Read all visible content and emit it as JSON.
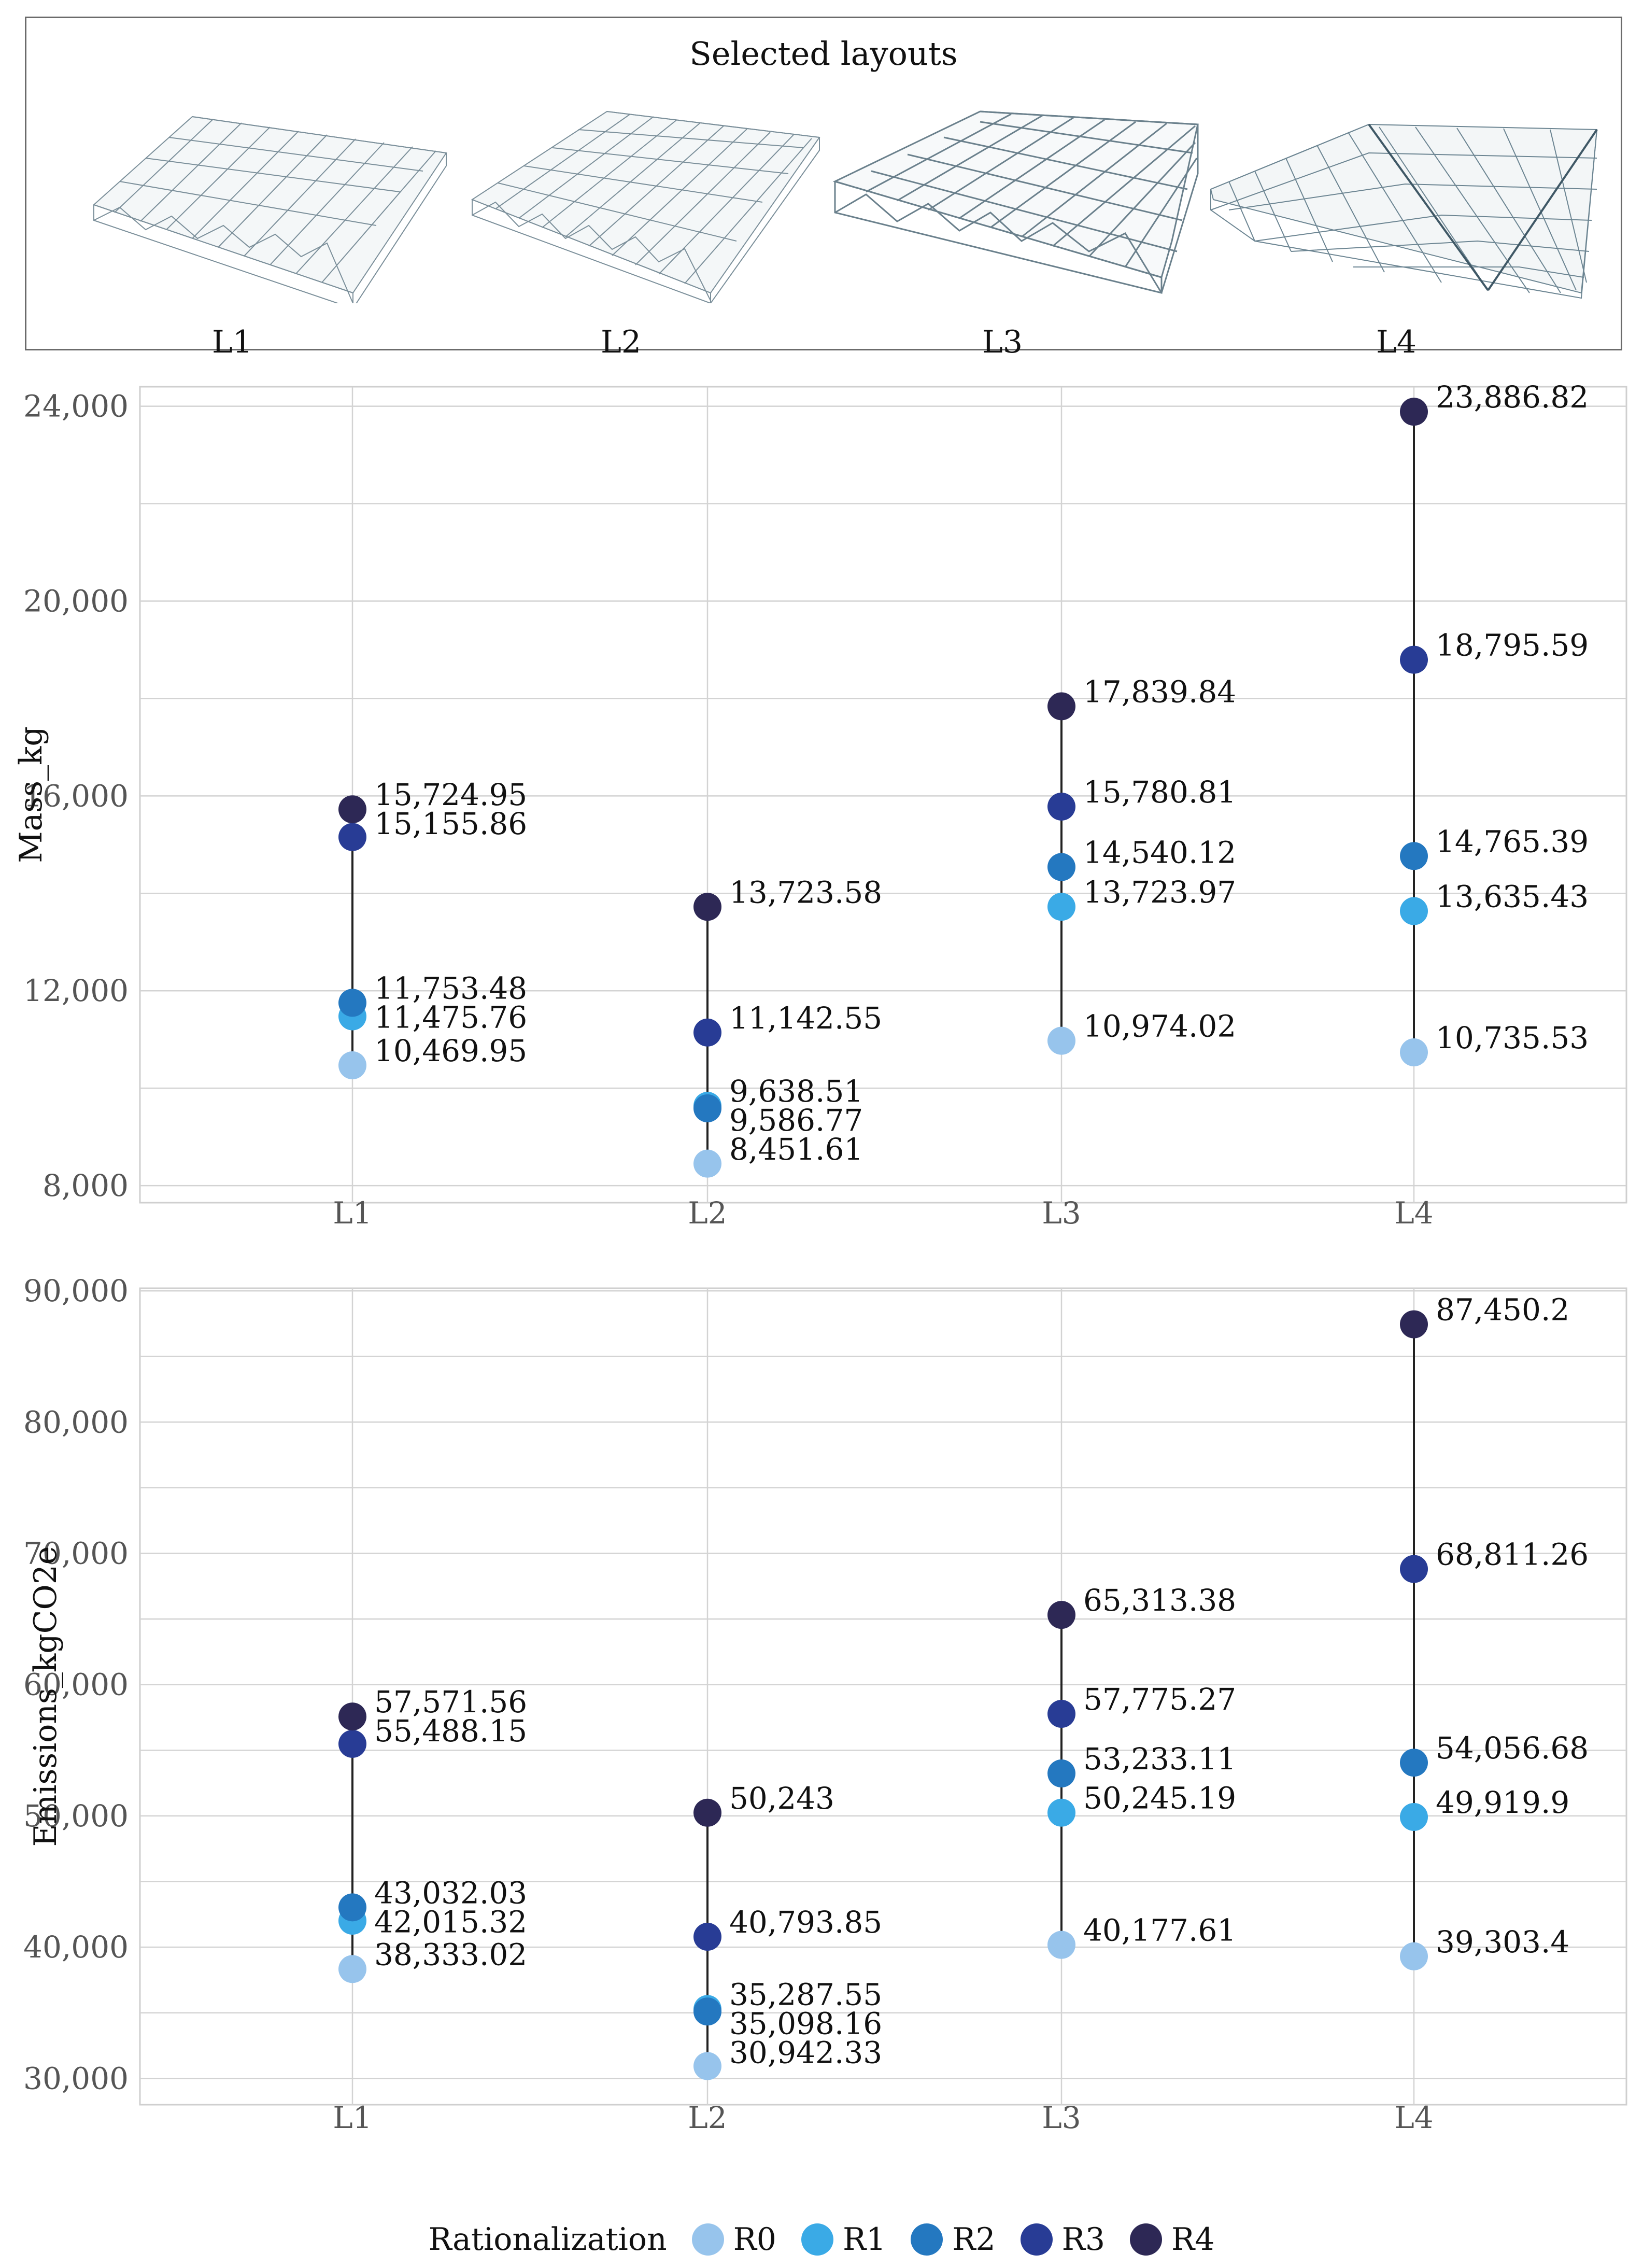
{
  "panel": {
    "title": "Selected layouts",
    "layouts": [
      "L1",
      "L2",
      "L3",
      "L4"
    ]
  },
  "legend": {
    "title": "Rationalization",
    "items": [
      {
        "label": "R0",
        "color": "#97c4ec"
      },
      {
        "label": "R1",
        "color": "#3aaae6"
      },
      {
        "label": "R2",
        "color": "#2478c0"
      },
      {
        "label": "R3",
        "color": "#283c95"
      },
      {
        "label": "R4",
        "color": "#2d2855"
      }
    ]
  },
  "chart_data": [
    {
      "type": "scatter",
      "title": "",
      "xlabel": "",
      "ylabel": "Mass_kg",
      "categories": [
        "L1",
        "L2",
        "L3",
        "L4"
      ],
      "ylim": [
        7650,
        24400
      ],
      "yticks": [
        8000,
        12000,
        16000,
        20000,
        24000
      ],
      "ytick_labels": [
        "8,000",
        "12,000",
        "16,000",
        "20,000",
        "24,000"
      ],
      "grid": true,
      "series": [
        {
          "name": "R0",
          "values": [
            10469.95,
            8451.61,
            10974.02,
            10735.53
          ],
          "labels": [
            "10,469.95",
            "8,451.61",
            "10,974.02",
            "10,735.53"
          ]
        },
        {
          "name": "R1",
          "values": [
            11475.76,
            9638.51,
            13723.97,
            13635.43
          ],
          "labels": [
            "11,475.76",
            "9,638.51",
            "13,723.97",
            "13,635.43"
          ]
        },
        {
          "name": "R2",
          "values": [
            11753.48,
            9586.77,
            14540.12,
            14765.39
          ],
          "labels": [
            "11,753.48",
            "9,586.77",
            "14,540.12",
            "14,765.39"
          ]
        },
        {
          "name": "R3",
          "values": [
            15155.86,
            11142.55,
            15780.81,
            18795.59
          ],
          "labels": [
            "15,155.86",
            "11,142.55",
            "15,780.81",
            "18,795.59"
          ]
        },
        {
          "name": "R4",
          "values": [
            15724.95,
            13723.58,
            17839.84,
            23886.82
          ],
          "labels": [
            "15,724.95",
            "13,723.58",
            "17,839.84",
            "23,886.82"
          ]
        }
      ]
    },
    {
      "type": "scatter",
      "title": "",
      "xlabel": "",
      "ylabel": "Emissions_kgCO2e",
      "categories": [
        "L1",
        "L2",
        "L3",
        "L4"
      ],
      "ylim": [
        28000,
        90200
      ],
      "yticks": [
        30000,
        40000,
        50000,
        60000,
        70000,
        80000,
        90000
      ],
      "ytick_labels": [
        "30,000",
        "40,000",
        "50,000",
        "60,000",
        "70,000",
        "80,000",
        "90,000"
      ],
      "grid": true,
      "series": [
        {
          "name": "R0",
          "values": [
            38333.02,
            30942.33,
            40177.61,
            39303.4
          ],
          "labels": [
            "38,333.02",
            "30,942.33",
            "40,177.61",
            "39,303.4"
          ]
        },
        {
          "name": "R1",
          "values": [
            42015.32,
            35287.55,
            50245.19,
            49919.9
          ],
          "labels": [
            "42,015.32",
            "35,287.55",
            "50,245.19",
            "49,919.9"
          ]
        },
        {
          "name": "R2",
          "values": [
            43032.03,
            35098.16,
            53233.11,
            54056.68
          ],
          "labels": [
            "43,032.03",
            "35,098.16",
            "53,233.11",
            "54,056.68"
          ]
        },
        {
          "name": "R3",
          "values": [
            55488.15,
            40793.85,
            57775.27,
            68811.26
          ],
          "labels": [
            "55,488.15",
            "40,793.85",
            "57,775.27",
            "68,811.26"
          ]
        },
        {
          "name": "R4",
          "values": [
            57571.56,
            50243,
            65313.38,
            87450.2
          ],
          "labels": [
            "57,571.56",
            "50,243",
            "65,313.38",
            "87,450.2"
          ]
        }
      ]
    }
  ]
}
